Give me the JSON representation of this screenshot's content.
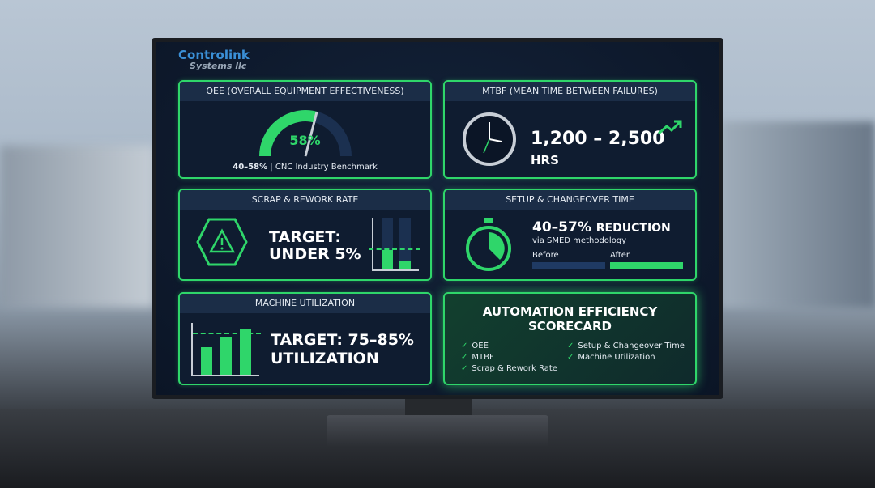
{
  "logo": {
    "name": "Controlink",
    "sub": "Systems llc"
  },
  "oee": {
    "title": "OEE (OVERALL EQUIPMENT EFFECTIVENESS)",
    "value": "58%",
    "value_fraction": 0.58,
    "benchmark_bold": "40–58%",
    "benchmark_text": "| CNC Industry Benchmark"
  },
  "mtbf": {
    "title": "MTBF (MEAN TIME BETWEEN FAILURES)",
    "range": "1,200 – 2,500",
    "unit": "HRS"
  },
  "scrap": {
    "title": "SCRAP & REWORK RATE",
    "line1": "TARGET:",
    "line2": "UNDER 5%"
  },
  "setup": {
    "title": "SETUP & CHANGEOVER TIME",
    "headline": "40–57%",
    "headline_suffix": "REDUCTION",
    "sub": "via SMED methodology",
    "before_label": "Before",
    "after_label": "After"
  },
  "util": {
    "title": "MACHINE UTILIZATION",
    "line1": "TARGET: 75–85%",
    "line2": "UTILIZATION"
  },
  "scorecard": {
    "title1": "AUTOMATION EFFICIENCY",
    "title2": "SCORECARD",
    "items_left": [
      "OEE",
      "MTBF",
      "Scrap & Rework Rate"
    ],
    "items_right": [
      "Setup & Changeover Time",
      "Machine Utilization"
    ]
  },
  "colors": {
    "accent": "#2fd66a",
    "panel": "#0f1c30",
    "header": "#1b2d47"
  }
}
